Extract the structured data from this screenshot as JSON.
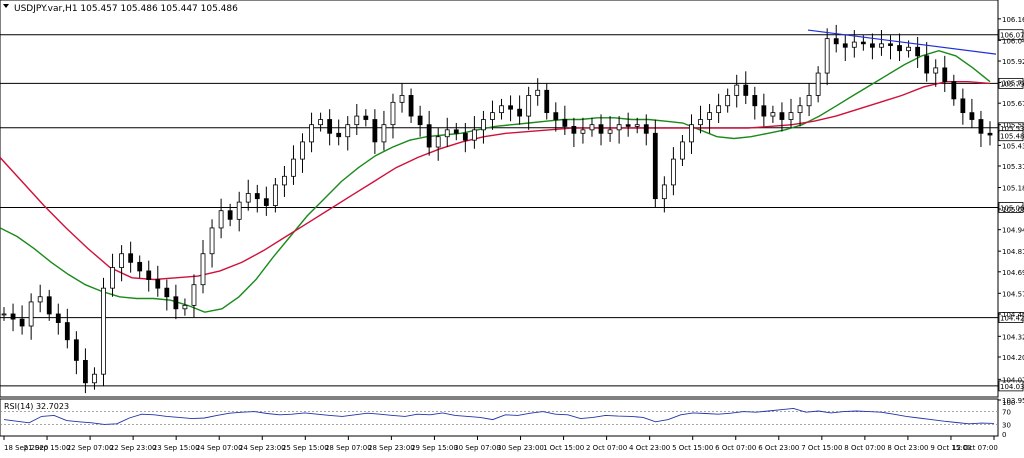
{
  "header": {
    "symbol_line": "USDJPY.var,H1  105.457 105.486 105.447 105.486"
  },
  "rsi_header": "RSI(14) 32.7023",
  "colors": {
    "candle": "#000000",
    "ma_fast": "#1a8a1a",
    "ma_slow": "#d0103a",
    "trendline": "#1f2fd6",
    "rsi": "#2233aa",
    "level_line": "#000000",
    "grid_dotted": "#888888"
  },
  "chart_data": [
    {
      "type": "candlestick",
      "title": "USDJPY.var,H1",
      "ylim": [
        103.95,
        106.17
      ],
      "y_ticks": [
        "106.165",
        "106.040",
        "105.920",
        "105.795",
        "105.675",
        "105.550",
        "105.430",
        "105.310",
        "105.185",
        "105.060",
        "104.940",
        "104.815",
        "104.695",
        "104.570",
        "104.450",
        "104.320",
        "104.200",
        "104.070",
        "103.950"
      ],
      "x_ticks": [
        "18 Sep 2020",
        "21 Sep 15:00",
        "22 Sep 07:00",
        "22 Sep 23:00",
        "23 Sep 15:00",
        "24 Sep 07:00",
        "24 Sep 23:00",
        "25 Sep 15:00",
        "28 Sep 07:00",
        "28 Sep 23:00",
        "29 Sep 15:00",
        "30 Sep 07:00",
        "30 Sep 23:00",
        "1 Oct 15:00",
        "2 Oct 07:00",
        "4 Oct 23:00",
        "5 Oct 15:00",
        "6 Oct 07:00",
        "6 Oct 23:00",
        "7 Oct 15:00",
        "8 Oct 07:00",
        "8 Oct 23:00",
        "9 Oct 15:00",
        "12 Oct 07:00"
      ],
      "horizontal_levels": [
        "106.073",
        "105.790",
        "105.532",
        "105.069",
        "104.429",
        "104.032"
      ],
      "current_price_label": "105.486",
      "series": [
        {
          "kind": "candles",
          "close_path": [
            104.45,
            104.42,
            104.38,
            104.52,
            104.55,
            104.45,
            104.4,
            104.3,
            104.18,
            104.05,
            104.1,
            104.6,
            104.72,
            104.8,
            104.75,
            104.7,
            104.65,
            104.6,
            104.55,
            104.48,
            104.5,
            104.62,
            104.8,
            104.95,
            105.05,
            105.0,
            105.1,
            105.15,
            105.12,
            105.08,
            105.2,
            105.25,
            105.35,
            105.45,
            105.55,
            105.58,
            105.5,
            105.48,
            105.55,
            105.6,
            105.58,
            105.45,
            105.55,
            105.68,
            105.72,
            105.6,
            105.55,
            105.42,
            105.48,
            105.52,
            105.5,
            105.46,
            105.52,
            105.58,
            105.62,
            105.66,
            105.64,
            105.6,
            105.72,
            105.75,
            105.62,
            105.58,
            105.54,
            105.5,
            105.52,
            105.55,
            105.5,
            105.52,
            105.55,
            105.54,
            105.55,
            105.5,
            105.12,
            105.2,
            105.35,
            105.45,
            105.55,
            105.58,
            105.62,
            105.66,
            105.72,
            105.78,
            105.72,
            105.66,
            105.6,
            105.62,
            105.58,
            105.62,
            105.66,
            105.72,
            105.85,
            106.05,
            106.02,
            106.0,
            106.03,
            106.02,
            106.0,
            106.02,
            106.01,
            105.98,
            106.0,
            105.95,
            105.85,
            105.88,
            105.8,
            105.7,
            105.62,
            105.58,
            105.5,
            105.49
          ]
        },
        {
          "name": "",
          "kind": "moving-average-fast",
          "values": [
            104.95,
            104.9,
            104.83,
            104.75,
            104.68,
            104.62,
            104.58,
            104.55,
            104.54,
            104.54,
            104.53,
            104.5,
            104.46,
            104.48,
            104.55,
            104.65,
            104.78,
            104.9,
            105.02,
            105.12,
            105.22,
            105.3,
            105.37,
            105.42,
            105.46,
            105.48,
            105.49,
            105.5,
            105.52,
            105.54,
            105.55,
            105.56,
            105.57,
            105.58,
            105.58,
            105.59,
            105.59,
            105.58,
            105.58,
            105.57,
            105.56,
            105.52,
            105.48,
            105.47,
            105.48,
            105.5,
            105.52,
            105.55,
            105.6,
            105.66,
            105.72,
            105.78,
            105.84,
            105.9,
            105.95,
            105.98,
            105.95,
            105.88,
            105.8
          ]
        },
        {
          "name": "",
          "kind": "moving-average-slow",
          "values": [
            105.36,
            105.22,
            105.08,
            104.95,
            104.83,
            104.72,
            104.66,
            104.65,
            104.66,
            104.67,
            104.7,
            104.75,
            104.82,
            104.9,
            104.98,
            105.06,
            105.14,
            105.22,
            105.3,
            105.36,
            105.41,
            105.45,
            105.48,
            105.5,
            105.51,
            105.52,
            105.53,
            105.53,
            105.53,
            105.53,
            105.53,
            105.53,
            105.53,
            105.53,
            105.53,
            105.54,
            105.55,
            105.57,
            105.6,
            105.64,
            105.68,
            105.72,
            105.77,
            105.8,
            105.8,
            105.79
          ]
        }
      ]
    },
    {
      "type": "line",
      "title": "RSI(14)",
      "ylim": [
        0,
        100
      ],
      "y_ticks": [
        "100",
        "70",
        "30",
        "0"
      ],
      "levels": [
        70,
        30
      ],
      "series": [
        {
          "name": "",
          "values": [
            45,
            40,
            35,
            55,
            58,
            42,
            38,
            35,
            30,
            32,
            50,
            62,
            60,
            55,
            52,
            48,
            50,
            58,
            65,
            68,
            70,
            64,
            60,
            62,
            66,
            62,
            58,
            55,
            60,
            65,
            62,
            58,
            55,
            62,
            60,
            66,
            58,
            55,
            52,
            45,
            60,
            58,
            65,
            70,
            62,
            60,
            48,
            52,
            58,
            56,
            55,
            52,
            38,
            45,
            60,
            66,
            64,
            62,
            65,
            70,
            68,
            72,
            76,
            80,
            68,
            72,
            66,
            70,
            72,
            70,
            68,
            62,
            55,
            50,
            45,
            40,
            36,
            32,
            34,
            33
          ]
        }
      ]
    }
  ]
}
